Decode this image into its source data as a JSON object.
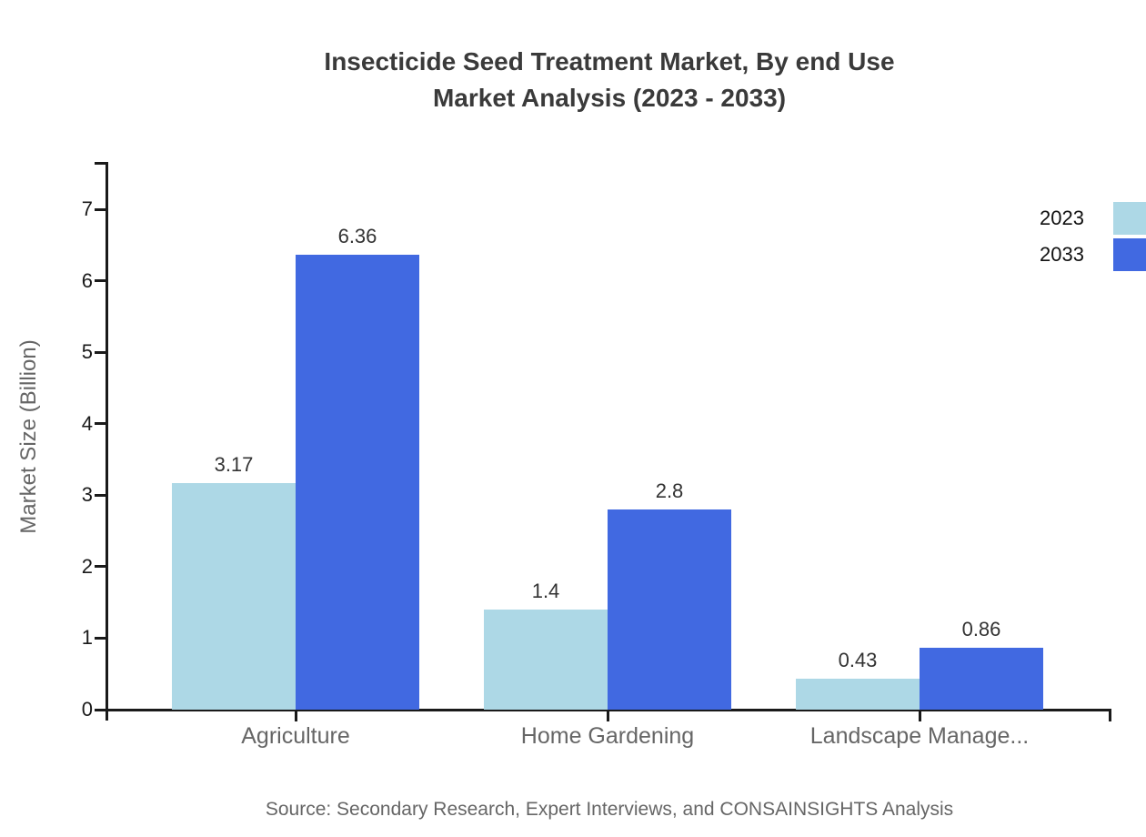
{
  "title": {
    "line1": "Insecticide Seed Treatment Market, By end Use",
    "line2": "Market Analysis (2023 - 2033)"
  },
  "source": "Source: Secondary Research, Expert Interviews, and CONSAINSIGHTS Analysis",
  "colors": {
    "bar_2023": "#ADD8E6",
    "bar_2033": "#4169E1",
    "axis": "#1a1a1a",
    "title_text": "#3a3a3a",
    "muted_text": "#666666",
    "value_text": "#333333",
    "legend_text": "#111111"
  },
  "chart_data": {
    "type": "bar",
    "title": "Insecticide Seed Treatment Market, By end Use Market Analysis (2023 - 2033)",
    "categories": [
      "Agriculture",
      "Home Gardening",
      "Landscape Manage..."
    ],
    "series": [
      {
        "name": "2023",
        "color": "#ADD8E6",
        "values": [
          3.17,
          1.4,
          0.43
        ]
      },
      {
        "name": "2033",
        "color": "#4169E1",
        "values": [
          6.36,
          2.8,
          0.86
        ]
      }
    ],
    "xlabel": "",
    "ylabel": "Market Size (Billion)",
    "ylim": [
      0,
      7
    ],
    "y_ticks": [
      0,
      1,
      2,
      3,
      4,
      5,
      6,
      7
    ],
    "grid": false,
    "legend_position": "top-right",
    "value_labels_shown": true
  }
}
